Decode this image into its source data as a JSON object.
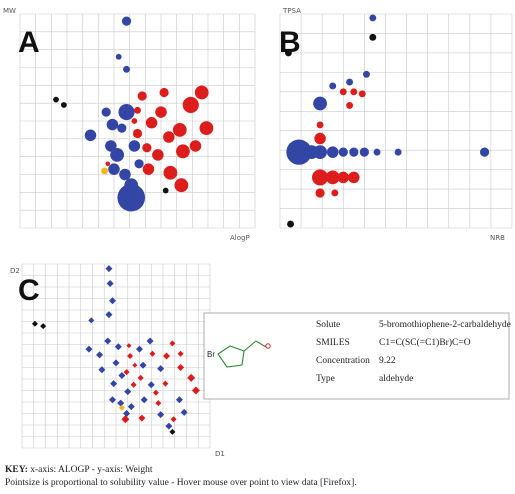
{
  "colors": {
    "blue": "#3345a5",
    "red": "#dd1c1c",
    "black": "#111111",
    "yellow": "#f0b81c",
    "grid": "#c9c9c9"
  },
  "panels": [
    {
      "letter": "A",
      "ylabel": "MW",
      "xlabel": "AlogP",
      "marker": "circle"
    },
    {
      "letter": "B",
      "ylabel": "TPSA",
      "xlabel": "NRB",
      "marker": "circle"
    },
    {
      "letter": "C",
      "ylabel": "D2",
      "xlabel": "D1",
      "marker": "diamond"
    }
  ],
  "tooltip": {
    "rows": [
      {
        "key": "Solute",
        "value": "5-bromothiophene-2-carbaldehyde"
      },
      {
        "key": "SMILES",
        "value": "C1=C(SC(=C1)Br)C=O"
      },
      {
        "key": "Concentration",
        "value": "9.22"
      },
      {
        "key": "Type",
        "value": "aldehyde"
      }
    ],
    "structure_atom": "Br"
  },
  "key": {
    "line1_bold": "KEY:",
    "line1_rest": " x-axis: ALOGP - y-axis: Weight",
    "line2": "Pointsize is proportional to solubility value - Hover mouse over point to view data [Firefox]."
  },
  "chart_data": [
    {
      "type": "scatter",
      "title": "A",
      "xlabel": "AlogP",
      "ylabel": "MW",
      "grid": true,
      "x_grid": [
        0,
        15
      ],
      "y_grid": [
        0,
        12
      ],
      "points": [
        {
          "x": 6.8,
          "y": 11.6,
          "size": 4,
          "color": "blue"
        },
        {
          "x": 6.3,
          "y": 9.6,
          "size": 2.5,
          "color": "blue"
        },
        {
          "x": 6.8,
          "y": 8.9,
          "size": 3,
          "color": "blue"
        },
        {
          "x": 2.3,
          "y": 7.2,
          "size": 2.5,
          "color": "black"
        },
        {
          "x": 2.8,
          "y": 6.9,
          "size": 2.5,
          "color": "black"
        },
        {
          "x": 4.5,
          "y": 5.2,
          "size": 5,
          "color": "blue"
        },
        {
          "x": 5.5,
          "y": 6.5,
          "size": 4,
          "color": "blue"
        },
        {
          "x": 5.9,
          "y": 5.8,
          "size": 5,
          "color": "blue"
        },
        {
          "x": 6.8,
          "y": 6.5,
          "size": 7,
          "color": "blue"
        },
        {
          "x": 6.5,
          "y": 5.6,
          "size": 4,
          "color": "blue"
        },
        {
          "x": 5.8,
          "y": 4.6,
          "size": 5,
          "color": "blue"
        },
        {
          "x": 6.2,
          "y": 4.1,
          "size": 6,
          "color": "blue"
        },
        {
          "x": 7.3,
          "y": 4.6,
          "size": 5,
          "color": "blue"
        },
        {
          "x": 6.0,
          "y": 3.3,
          "size": 5,
          "color": "blue"
        },
        {
          "x": 6.7,
          "y": 3.0,
          "size": 5,
          "color": "blue"
        },
        {
          "x": 7.6,
          "y": 3.6,
          "size": 4,
          "color": "blue"
        },
        {
          "x": 7.1,
          "y": 2.4,
          "size": 6,
          "color": "blue"
        },
        {
          "x": 7.1,
          "y": 1.7,
          "size": 12,
          "color": "blue"
        },
        {
          "x": 7.3,
          "y": 6.0,
          "size": 2.5,
          "color": "red"
        },
        {
          "x": 7.5,
          "y": 6.6,
          "size": 3,
          "color": "red"
        },
        {
          "x": 7.8,
          "y": 7.4,
          "size": 4,
          "color": "red"
        },
        {
          "x": 7.5,
          "y": 5.3,
          "size": 4,
          "color": "red"
        },
        {
          "x": 8.1,
          "y": 4.5,
          "size": 4,
          "color": "red"
        },
        {
          "x": 8.4,
          "y": 5.9,
          "size": 5,
          "color": "red"
        },
        {
          "x": 9.0,
          "y": 6.5,
          "size": 5,
          "color": "red"
        },
        {
          "x": 9.2,
          "y": 7.6,
          "size": 4,
          "color": "red"
        },
        {
          "x": 9.5,
          "y": 5.1,
          "size": 5,
          "color": "red"
        },
        {
          "x": 8.8,
          "y": 4.1,
          "size": 5,
          "color": "red"
        },
        {
          "x": 8.2,
          "y": 3.3,
          "size": 5,
          "color": "red"
        },
        {
          "x": 9.6,
          "y": 3.1,
          "size": 6,
          "color": "red"
        },
        {
          "x": 10.4,
          "y": 4.3,
          "size": 6,
          "color": "red"
        },
        {
          "x": 10.2,
          "y": 5.5,
          "size": 6,
          "color": "red"
        },
        {
          "x": 10.9,
          "y": 6.9,
          "size": 7,
          "color": "red"
        },
        {
          "x": 11.6,
          "y": 7.6,
          "size": 6,
          "color": "red"
        },
        {
          "x": 11.9,
          "y": 5.6,
          "size": 6,
          "color": "red"
        },
        {
          "x": 11.2,
          "y": 4.6,
          "size": 5,
          "color": "red"
        },
        {
          "x": 10.3,
          "y": 2.4,
          "size": 6,
          "color": "red"
        },
        {
          "x": 5.4,
          "y": 3.2,
          "size": 3,
          "color": "yellow"
        },
        {
          "x": 9.3,
          "y": 2.1,
          "size": 2.5,
          "color": "black"
        },
        {
          "x": 5.6,
          "y": 3.6,
          "size": 2,
          "color": "red"
        }
      ]
    },
    {
      "type": "scatter",
      "title": "B",
      "xlabel": "NRB",
      "ylabel": "TPSA",
      "grid": true,
      "x_grid": [
        0,
        11
      ],
      "y_grid": [
        0,
        11
      ],
      "points": [
        {
          "x": 0.9,
          "y": 3.9,
          "size": 11,
          "color": "blue"
        },
        {
          "x": 1.5,
          "y": 3.9,
          "size": 6,
          "color": "blue"
        },
        {
          "x": 1.9,
          "y": 3.9,
          "size": 6,
          "color": "blue"
        },
        {
          "x": 2.5,
          "y": 3.9,
          "size": 5,
          "color": "blue"
        },
        {
          "x": 3.0,
          "y": 3.9,
          "size": 4,
          "color": "blue"
        },
        {
          "x": 3.5,
          "y": 3.9,
          "size": 4,
          "color": "blue"
        },
        {
          "x": 4.0,
          "y": 3.9,
          "size": 4,
          "color": "blue"
        },
        {
          "x": 4.6,
          "y": 3.9,
          "size": 3,
          "color": "blue"
        },
        {
          "x": 5.6,
          "y": 3.9,
          "size": 3,
          "color": "blue"
        },
        {
          "x": 9.7,
          "y": 3.9,
          "size": 4,
          "color": "blue"
        },
        {
          "x": 1.9,
          "y": 6.4,
          "size": 6,
          "color": "blue"
        },
        {
          "x": 2.5,
          "y": 7.3,
          "size": 3,
          "color": "blue"
        },
        {
          "x": 3.3,
          "y": 7.5,
          "size": 3,
          "color": "blue"
        },
        {
          "x": 4.1,
          "y": 7.9,
          "size": 3,
          "color": "blue"
        },
        {
          "x": 4.4,
          "y": 10.8,
          "size": 3,
          "color": "blue"
        },
        {
          "x": 4.4,
          "y": 9.8,
          "size": 3,
          "color": "black"
        },
        {
          "x": 0.4,
          "y": 9.0,
          "size": 3,
          "color": "black"
        },
        {
          "x": 0.5,
          "y": 0.2,
          "size": 3,
          "color": "black"
        },
        {
          "x": 1.9,
          "y": 4.6,
          "size": 5,
          "color": "red"
        },
        {
          "x": 1.9,
          "y": 5.3,
          "size": 3,
          "color": "red"
        },
        {
          "x": 1.9,
          "y": 2.6,
          "size": 7,
          "color": "red"
        },
        {
          "x": 2.5,
          "y": 2.6,
          "size": 6,
          "color": "red"
        },
        {
          "x": 3.0,
          "y": 2.6,
          "size": 5,
          "color": "red"
        },
        {
          "x": 3.5,
          "y": 2.6,
          "size": 5,
          "color": "red"
        },
        {
          "x": 1.9,
          "y": 1.8,
          "size": 4,
          "color": "red"
        },
        {
          "x": 2.6,
          "y": 1.8,
          "size": 3,
          "color": "red"
        },
        {
          "x": 3.0,
          "y": 7.0,
          "size": 3,
          "color": "red"
        },
        {
          "x": 3.5,
          "y": 7.0,
          "size": 3,
          "color": "red"
        },
        {
          "x": 3.9,
          "y": 6.9,
          "size": 3,
          "color": "red"
        },
        {
          "x": 3.3,
          "y": 6.3,
          "size": 3,
          "color": "red"
        }
      ]
    },
    {
      "type": "scatter",
      "title": "C",
      "xlabel": "D1",
      "ylabel": "D2",
      "grid": true,
      "x_grid": [
        0,
        16
      ],
      "y_grid": [
        0,
        16
      ],
      "points": [
        {
          "x": 1.1,
          "y": 10.8,
          "size": 3,
          "color": "black"
        },
        {
          "x": 1.8,
          "y": 10.6,
          "size": 3,
          "color": "black"
        },
        {
          "x": 7.4,
          "y": 15.6,
          "size": 3.5,
          "color": "blue"
        },
        {
          "x": 7.5,
          "y": 14.3,
          "size": 3.5,
          "color": "blue"
        },
        {
          "x": 7.7,
          "y": 12.8,
          "size": 3.5,
          "color": "blue"
        },
        {
          "x": 7.4,
          "y": 11.6,
          "size": 3.5,
          "color": "blue"
        },
        {
          "x": 5.9,
          "y": 11.1,
          "size": 3,
          "color": "blue"
        },
        {
          "x": 5.7,
          "y": 8.6,
          "size": 3.5,
          "color": "blue"
        },
        {
          "x": 6.6,
          "y": 8.1,
          "size": 3.5,
          "color": "blue"
        },
        {
          "x": 6.8,
          "y": 6.8,
          "size": 3.5,
          "color": "blue"
        },
        {
          "x": 8.2,
          "y": 8.8,
          "size": 3.5,
          "color": "blue"
        },
        {
          "x": 7.3,
          "y": 9.3,
          "size": 3.5,
          "color": "blue"
        },
        {
          "x": 8.0,
          "y": 7.4,
          "size": 3.5,
          "color": "blue"
        },
        {
          "x": 8.5,
          "y": 6.3,
          "size": 3.5,
          "color": "blue"
        },
        {
          "x": 7.8,
          "y": 5.6,
          "size": 3.5,
          "color": "blue"
        },
        {
          "x": 9.0,
          "y": 4.9,
          "size": 3.5,
          "color": "blue"
        },
        {
          "x": 7.7,
          "y": 4.2,
          "size": 3.5,
          "color": "blue"
        },
        {
          "x": 8.4,
          "y": 3.9,
          "size": 3.5,
          "color": "blue"
        },
        {
          "x": 9.3,
          "y": 3.6,
          "size": 3.5,
          "color": "blue"
        },
        {
          "x": 8.9,
          "y": 3.0,
          "size": 3.5,
          "color": "blue"
        },
        {
          "x": 10.4,
          "y": 4.2,
          "size": 3.5,
          "color": "blue"
        },
        {
          "x": 11.0,
          "y": 5.5,
          "size": 3.5,
          "color": "blue"
        },
        {
          "x": 10.3,
          "y": 7.2,
          "size": 3.5,
          "color": "blue"
        },
        {
          "x": 10.0,
          "y": 8.6,
          "size": 3.5,
          "color": "blue"
        },
        {
          "x": 10.9,
          "y": 9.3,
          "size": 3.5,
          "color": "blue"
        },
        {
          "x": 11.8,
          "y": 2.9,
          "size": 3.5,
          "color": "blue"
        },
        {
          "x": 12.5,
          "y": 1.9,
          "size": 3.5,
          "color": "blue"
        },
        {
          "x": 13.8,
          "y": 3.1,
          "size": 3.5,
          "color": "blue"
        },
        {
          "x": 13.4,
          "y": 4.2,
          "size": 3.5,
          "color": "blue"
        },
        {
          "x": 11.8,
          "y": 6.9,
          "size": 3.5,
          "color": "blue"
        },
        {
          "x": 9.1,
          "y": 8.9,
          "size": 2.5,
          "color": "red"
        },
        {
          "x": 9.2,
          "y": 8.0,
          "size": 3,
          "color": "red"
        },
        {
          "x": 8.9,
          "y": 6.6,
          "size": 3,
          "color": "red"
        },
        {
          "x": 9.5,
          "y": 5.5,
          "size": 3,
          "color": "red"
        },
        {
          "x": 9.6,
          "y": 7.2,
          "size": 2.5,
          "color": "red"
        },
        {
          "x": 10.1,
          "y": 6.1,
          "size": 3,
          "color": "red"
        },
        {
          "x": 11.1,
          "y": 8.2,
          "size": 3,
          "color": "red"
        },
        {
          "x": 12.3,
          "y": 8.0,
          "size": 3.5,
          "color": "red"
        },
        {
          "x": 12.8,
          "y": 9.1,
          "size": 3,
          "color": "red"
        },
        {
          "x": 13.5,
          "y": 8.2,
          "size": 3,
          "color": "red"
        },
        {
          "x": 13.5,
          "y": 7.0,
          "size": 3.5,
          "color": "red"
        },
        {
          "x": 14.4,
          "y": 6.1,
          "size": 4,
          "color": "red"
        },
        {
          "x": 14.8,
          "y": 5.0,
          "size": 4,
          "color": "red"
        },
        {
          "x": 12.2,
          "y": 5.6,
          "size": 3,
          "color": "red"
        },
        {
          "x": 11.4,
          "y": 4.8,
          "size": 3,
          "color": "red"
        },
        {
          "x": 11.6,
          "y": 3.9,
          "size": 3,
          "color": "red"
        },
        {
          "x": 8.8,
          "y": 2.5,
          "size": 4,
          "color": "red"
        },
        {
          "x": 10.2,
          "y": 2.6,
          "size": 3.5,
          "color": "red"
        },
        {
          "x": 12.9,
          "y": 2.5,
          "size": 3,
          "color": "red"
        },
        {
          "x": 8.5,
          "y": 3.5,
          "size": 3,
          "color": "yellow"
        },
        {
          "x": 12.8,
          "y": 1.4,
          "size": 3,
          "color": "black"
        }
      ]
    }
  ]
}
